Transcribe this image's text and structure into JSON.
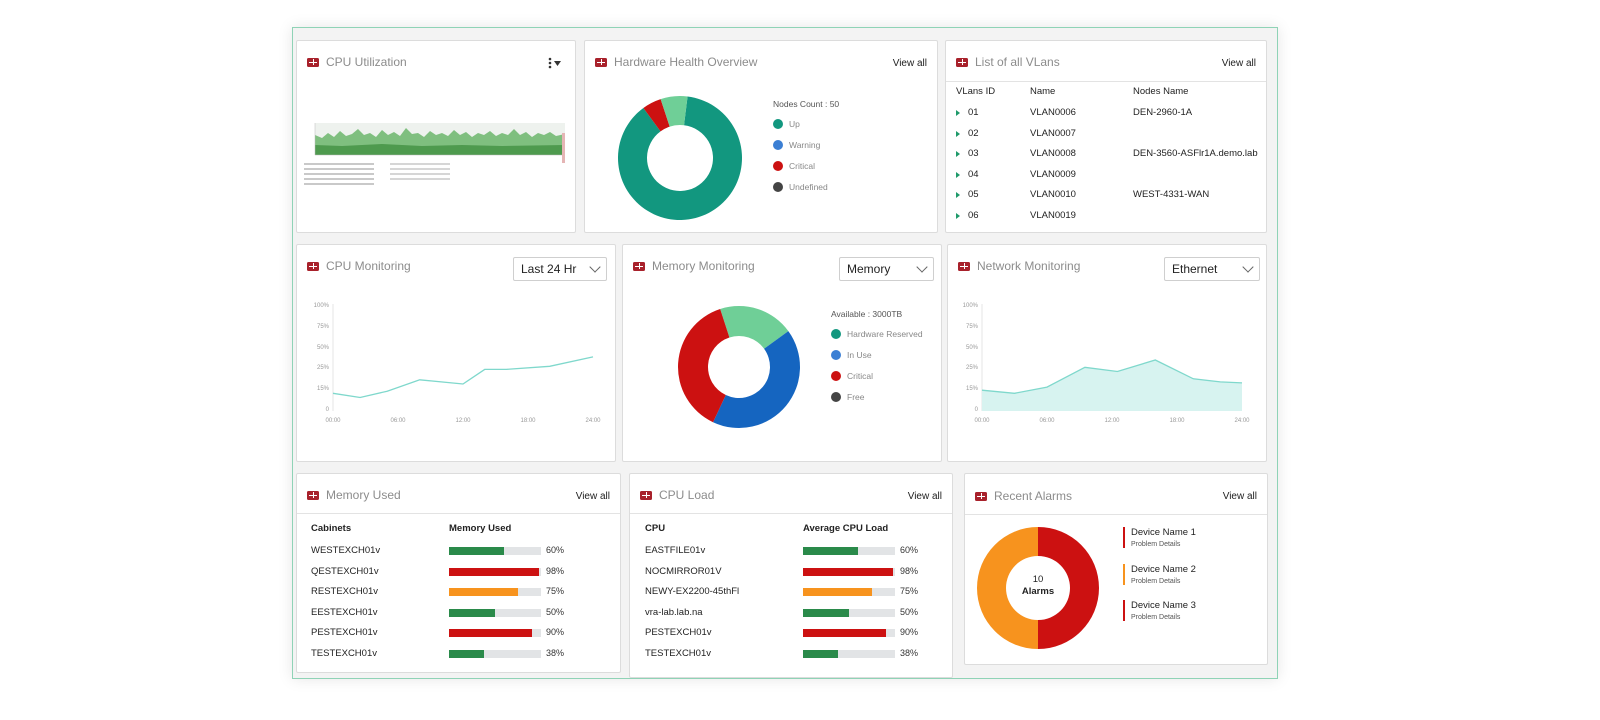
{
  "colors": {
    "teal": "#1e9a85",
    "green": "#2a8a4a",
    "red": "#cc1111",
    "orange": "#f7931e",
    "blue": "#1565c0",
    "lightgreen": "#6fcf97",
    "darkgrey": "#444444"
  },
  "cpu_util": {
    "title": "CPU Utilization",
    "menu_icon": "kebab-menu-icon"
  },
  "hardware": {
    "title": "Hardware Health Overview",
    "view_all": "View all",
    "nodes_count": "Nodes Count : 50",
    "legend": [
      "Up",
      "Warning",
      "Critical",
      "Undefined"
    ],
    "chart_data": {
      "type": "pie",
      "categories": [
        "Up",
        "Warning",
        "Critical",
        "Undefined"
      ],
      "values": [
        88,
        0,
        5,
        7
      ],
      "colors": [
        "#12977f",
        "#1565c0",
        "#cc1111",
        "#6fcf97"
      ]
    }
  },
  "vlans": {
    "title": "List of all VLans",
    "view_all": "View all",
    "columns": [
      "VLans ID",
      "Name",
      "Nodes Name"
    ],
    "rows": [
      {
        "id": "01",
        "name": "VLAN0006",
        "node": "DEN-2960-1A"
      },
      {
        "id": "02",
        "name": "VLAN0007",
        "node": ""
      },
      {
        "id": "03",
        "name": "VLAN0008",
        "node": "DEN-3560-ASFlr1A.demo.lab"
      },
      {
        "id": "04",
        "name": "VLAN0009",
        "node": ""
      },
      {
        "id": "05",
        "name": "VLAN0010",
        "node": "WEST-4331-WAN"
      },
      {
        "id": "06",
        "name": "VLAN0019",
        "node": ""
      }
    ]
  },
  "cpu_mon": {
    "title": "CPU Monitoring",
    "select": "Last 24 Hr",
    "chart_data": {
      "type": "line",
      "y_ticks": [
        "100%",
        "75%",
        "50%",
        "25%",
        "15%",
        "0"
      ],
      "x_ticks": [
        "00:00",
        "06:00",
        "12:00",
        "18:00",
        "24:00"
      ],
      "ylim": [
        0,
        100
      ],
      "x": [
        0,
        2.5,
        5,
        8,
        12,
        14,
        16,
        20,
        24
      ],
      "values": [
        17,
        13,
        19,
        30,
        26,
        40,
        40,
        43,
        52
      ]
    }
  },
  "mem_mon": {
    "title": "Memory Monitoring",
    "select": "Memory",
    "available": "Available : 3000TB",
    "legend": [
      "Hardware Reserved",
      "In Use",
      "Critical",
      "Free"
    ],
    "chart_data": {
      "type": "pie",
      "categories": [
        "Hardware Reserved",
        "In Use",
        "Critical",
        "Free"
      ],
      "values": [
        20,
        42,
        38,
        0
      ],
      "colors": [
        "#6fcf97",
        "#1565c0",
        "#cc1111",
        "#444444"
      ]
    }
  },
  "net_mon": {
    "title": "Network Monitoring",
    "select": "Ethernet",
    "chart_data": {
      "type": "area",
      "y_ticks": [
        "100%",
        "75%",
        "50%",
        "25%",
        "15%",
        "0"
      ],
      "x_ticks": [
        "00:00",
        "06:00",
        "12:00",
        "18:00",
        "24:00"
      ],
      "ylim": [
        0,
        100
      ],
      "x": [
        0,
        3,
        6,
        9.5,
        12.5,
        16,
        19.5,
        22,
        24
      ],
      "values": [
        20,
        17,
        23,
        42,
        38,
        49,
        31,
        28,
        27
      ]
    }
  },
  "mem_used": {
    "title": "Memory Used",
    "view_all": "View all",
    "columns": [
      "Cabinets",
      "Memory Used"
    ],
    "rows": [
      {
        "name": "WESTEXCH01v",
        "value": 60,
        "pct": "60%",
        "color": "#2a8a4a"
      },
      {
        "name": "QESTEXCH01v",
        "value": 98,
        "pct": "98%",
        "color": "#cc1111"
      },
      {
        "name": "RESTEXCH01v",
        "value": 75,
        "pct": "75%",
        "color": "#f7931e"
      },
      {
        "name": "EESTEXCH01v",
        "value": 50,
        "pct": "50%",
        "color": "#2a8a4a"
      },
      {
        "name": "PESTEXCH01v",
        "value": 90,
        "pct": "90%",
        "color": "#cc1111"
      },
      {
        "name": "TESTEXCH01v",
        "value": 38,
        "pct": "38%",
        "color": "#2a8a4a"
      }
    ]
  },
  "cpu_load": {
    "title": "CPU Load",
    "view_all": "View all",
    "columns": [
      "CPU",
      "Average CPU Load"
    ],
    "rows": [
      {
        "name": "EASTFILE01v",
        "value": 60,
        "pct": "60%",
        "color": "#2a8a4a"
      },
      {
        "name": "NOCMIRROR01V",
        "value": 98,
        "pct": "98%",
        "color": "#cc1111"
      },
      {
        "name": "NEWY-EX2200-45thFl",
        "value": 75,
        "pct": "75%",
        "color": "#f7931e"
      },
      {
        "name": "vra-lab.lab.na",
        "value": 50,
        "pct": "50%",
        "color": "#2a8a4a"
      },
      {
        "name": "PESTEXCH01v",
        "value": 90,
        "pct": "90%",
        "color": "#cc1111"
      },
      {
        "name": "TESTEXCH01v",
        "value": 38,
        "pct": "38%",
        "color": "#2a8a4a"
      }
    ]
  },
  "alarms": {
    "title": "Recent Alarms",
    "view_all": "View all",
    "count": "10",
    "count_label": "Alarms",
    "items": [
      {
        "name": "Device Name 1",
        "detail": "Problem Details",
        "color": "#cc1111"
      },
      {
        "name": "Device Name 2",
        "detail": "Problem Details",
        "color": "#f7931e"
      },
      {
        "name": "Device Name 3",
        "detail": "Problem Details",
        "color": "#cc1111"
      }
    ],
    "chart_data": {
      "type": "pie",
      "categories": [
        "Critical",
        "Warning"
      ],
      "values": [
        50,
        50
      ],
      "colors": [
        "#cc1111",
        "#f7931e"
      ]
    }
  }
}
